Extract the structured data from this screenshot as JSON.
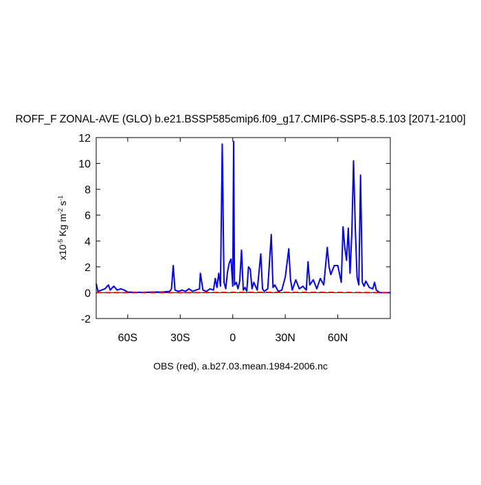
{
  "chart_data": {
    "type": "line",
    "title": "ROFF_F ZONAL-AVE (GLO) b.e21.BSSP585cmip6.f09_g17.CMIP6-SSP5-8.5.103 [2071-2100]",
    "ylabel": [
      {
        "text": "x10",
        "sup": false
      },
      {
        "text": "-5",
        "sup": true
      },
      {
        "text": " Kg m",
        "sup": false
      },
      {
        "text": "-2",
        "sup": true
      },
      {
        "text": " s",
        "sup": false
      },
      {
        "text": "-1",
        "sup": true
      }
    ],
    "footer": "OBS (red), a.b27.03.mean.1984-2006.nc",
    "xlim": [
      -78,
      90
    ],
    "ylim": [
      -2,
      12
    ],
    "xticks": [
      {
        "value": -60,
        "label": "60S"
      },
      {
        "value": -30,
        "label": "30S"
      },
      0,
      {
        "value": 30,
        "label": "30N"
      },
      {
        "value": 60,
        "label": "60N"
      }
    ],
    "yticks": [
      -2,
      0,
      2,
      4,
      6,
      8,
      10,
      12
    ],
    "series": [
      {
        "color": "#0000ff",
        "dash": false,
        "x": [
          -78,
          -77,
          -75,
          -73,
          -71,
          -70,
          -68,
          -66,
          -64,
          -62,
          -60,
          -55,
          -50,
          -45,
          -40,
          -36,
          -35,
          -34,
          -33,
          -31,
          -29,
          -27,
          -25,
          -23,
          -21,
          -19,
          -18.5,
          -17,
          -15,
          -13,
          -11,
          -10,
          -9,
          -8,
          -7,
          -6,
          -5,
          -4,
          -3,
          -2,
          -1,
          0,
          0.5,
          1,
          2,
          3,
          4,
          5,
          6,
          7,
          8,
          9,
          10,
          11,
          12,
          14,
          16,
          17,
          18,
          20,
          22,
          23,
          24,
          26,
          28,
          30,
          32,
          33,
          34,
          36,
          38,
          40,
          42,
          43,
          44,
          46,
          48,
          50,
          52,
          54,
          55,
          56,
          58,
          60,
          62,
          63,
          64,
          65,
          66,
          67,
          68,
          69,
          70,
          71,
          72,
          73,
          74,
          75,
          76,
          78,
          80,
          81,
          82,
          84,
          86,
          88,
          90
        ],
        "values": [
          0.7,
          0.1,
          0.2,
          0.3,
          0.6,
          0.2,
          0.5,
          0.2,
          0.3,
          0.2,
          0.05,
          0.02,
          0.03,
          0.05,
          0.05,
          0.1,
          0.3,
          2.1,
          0.2,
          0.1,
          0.2,
          0.1,
          0.3,
          0.1,
          0.2,
          0.3,
          1.5,
          0.2,
          0.1,
          0.3,
          0.2,
          1.1,
          0.4,
          1.5,
          0.5,
          11.5,
          0.8,
          0.3,
          1.6,
          2.3,
          2.6,
          0.5,
          11.7,
          0.6,
          0.8,
          0.3,
          0.9,
          3.3,
          0.2,
          0.4,
          0.1,
          2.0,
          1.8,
          0.3,
          0.8,
          0.2,
          3.0,
          0.3,
          0.1,
          0.3,
          4.5,
          0.4,
          0.6,
          0.1,
          0.2,
          1.2,
          3.4,
          1.0,
          0.2,
          1.0,
          0.3,
          0.5,
          0.2,
          2.4,
          0.6,
          1.0,
          0.3,
          1.1,
          0.6,
          3.5,
          2.0,
          1.4,
          2.1,
          2.1,
          0.8,
          5.1,
          3.5,
          2.5,
          5.0,
          1.5,
          4.5,
          10.2,
          5.0,
          1.2,
          0.6,
          9.1,
          0.8,
          0.5,
          0.9,
          0.4,
          0.3,
          0.8,
          0.2,
          0,
          0,
          0,
          0
        ]
      },
      {
        "color": "#ff0000",
        "dash": true,
        "x": [
          -78,
          -60,
          -30,
          0,
          30,
          60,
          90
        ],
        "values": [
          0,
          0,
          0,
          0.02,
          0.02,
          0.02,
          0
        ]
      }
    ]
  }
}
